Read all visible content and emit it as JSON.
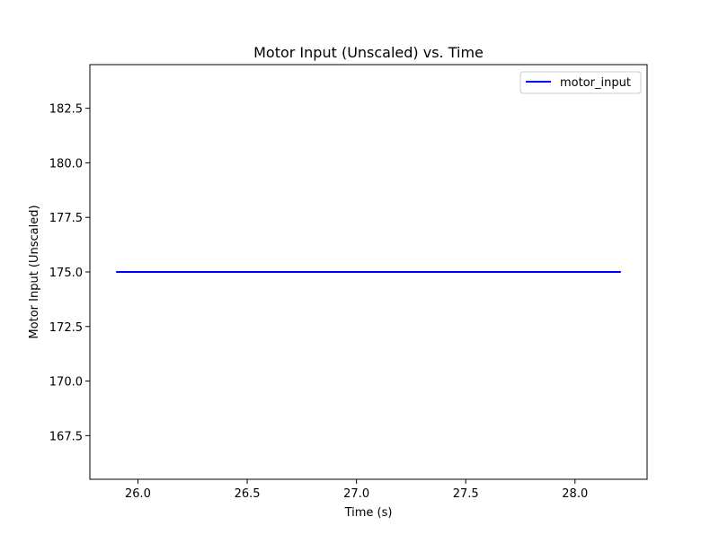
{
  "chart_data": {
    "type": "line",
    "title": "Motor Input (Unscaled) vs. Time",
    "xlabel": "Time (s)",
    "ylabel": "Motor Input (Unscaled)",
    "xlim": [
      25.78,
      28.33
    ],
    "ylim": [
      165.5,
      184.5
    ],
    "xticks": [
      26.0,
      26.5,
      27.0,
      27.5,
      28.0
    ],
    "yticks": [
      167.5,
      170.0,
      172.5,
      175.0,
      177.5,
      180.0,
      182.5
    ],
    "xtick_labels": [
      "26.0",
      "26.5",
      "27.0",
      "27.5",
      "28.0"
    ],
    "ytick_labels": [
      "167.5",
      "170.0",
      "172.5",
      "175.0",
      "177.5",
      "180.0",
      "182.5"
    ],
    "grid": false,
    "legend_position": "top-right",
    "series": [
      {
        "name": "motor_input",
        "color": "#0000ff",
        "x": [
          25.9,
          28.21
        ],
        "y": [
          175.0,
          175.0
        ]
      }
    ]
  }
}
